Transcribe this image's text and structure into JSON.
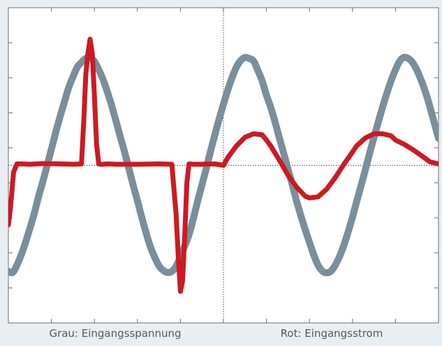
{
  "chart_data": {
    "type": "line",
    "title": "",
    "xlabel": "",
    "ylabel": "",
    "x_divisions": 10,
    "y_divisions": 9,
    "grid": false,
    "center_crosshair": true,
    "xlim": [
      0,
      10
    ],
    "ylim": [
      -4.5,
      4.5
    ],
    "series": [
      {
        "name": "Grau: Eingangsspannung",
        "color": "#7a8e9c",
        "x": [
          0.0,
          0.1,
          0.2,
          0.3,
          0.4,
          0.5,
          0.6,
          0.7,
          0.8,
          0.9,
          1.0,
          1.1,
          1.2,
          1.3,
          1.4,
          1.5,
          1.6,
          1.7,
          1.8,
          1.9,
          2.0,
          2.1,
          2.2,
          2.3,
          2.4,
          2.5,
          2.6,
          2.7,
          2.8,
          2.9,
          3.0,
          3.1,
          3.2,
          3.3,
          3.4,
          3.5,
          3.6,
          3.7,
          3.8,
          3.9,
          4.0,
          4.1,
          4.2,
          4.3,
          4.4,
          4.5,
          4.6,
          4.7,
          4.8,
          4.9,
          5.0,
          5.1,
          5.2,
          5.3,
          5.4,
          5.5,
          5.6,
          5.7,
          5.8,
          5.9,
          6.0,
          6.1,
          6.2,
          6.3,
          6.4,
          6.5,
          6.6,
          6.7,
          6.8,
          6.9,
          7.0,
          7.1,
          7.2,
          7.3,
          7.4,
          7.5,
          7.6,
          7.7,
          7.8,
          7.9,
          8.0,
          8.1,
          8.2,
          8.3,
          8.4,
          8.5,
          8.6,
          8.7,
          8.8,
          8.9,
          9.0,
          9.1,
          9.2,
          9.3,
          9.4,
          9.5,
          9.6,
          9.7,
          9.8,
          9.9,
          10.0
        ],
        "values": [
          -3.03,
          -3.06,
          -2.85,
          -2.55,
          -2.2,
          -1.8,
          -1.38,
          -0.9,
          -0.47,
          -0.01,
          0.46,
          0.94,
          1.38,
          1.8,
          2.21,
          2.52,
          2.8,
          2.94,
          3.05,
          3.06,
          2.97,
          2.73,
          2.45,
          2.1,
          1.71,
          1.27,
          0.82,
          0.39,
          -0.09,
          -0.56,
          -1.01,
          -1.48,
          -1.92,
          -2.32,
          -2.62,
          -2.87,
          -3.0,
          -3.06,
          -3.03,
          -2.88,
          -2.6,
          -2.3,
          -1.98,
          -1.52,
          -1.03,
          -0.56,
          -0.09,
          0.4,
          0.87,
          1.32,
          1.74,
          2.15,
          2.5,
          2.8,
          2.99,
          3.08,
          3.05,
          2.98,
          2.71,
          2.41,
          2.0,
          1.65,
          1.24,
          0.78,
          0.35,
          -0.11,
          -0.55,
          -1.02,
          -1.44,
          -1.83,
          -2.2,
          -2.56,
          -2.85,
          -3.02,
          -3.07,
          -3.02,
          -2.85,
          -2.6,
          -2.28,
          -1.9,
          -1.48,
          -1.02,
          -0.58,
          -0.12,
          0.35,
          0.8,
          1.24,
          1.66,
          2.06,
          2.42,
          2.73,
          2.98,
          3.08,
          3.05,
          2.93,
          2.71,
          2.42,
          2.08,
          1.67,
          1.22,
          0.77
        ]
      },
      {
        "name": "Rot: Eingangsstrom",
        "color": "#cc1a22",
        "x": [
          0.0,
          0.05,
          0.12,
          0.2,
          0.3,
          0.5,
          0.8,
          1.2,
          1.5,
          1.7,
          1.75,
          1.8,
          1.85,
          1.9,
          1.95,
          2.0,
          2.05,
          2.1,
          2.15,
          2.2,
          2.3,
          2.5,
          3.0,
          3.5,
          3.8,
          3.9,
          3.95,
          4.0,
          4.05,
          4.1,
          4.15,
          4.2,
          4.3,
          4.5,
          4.8,
          5.0,
          5.1,
          5.3,
          5.5,
          5.7,
          5.9,
          6.0,
          6.1,
          6.3,
          6.5,
          6.7,
          6.9,
          7.0,
          7.2,
          7.4,
          7.6,
          7.8,
          7.9,
          8.0,
          8.1,
          8.3,
          8.5,
          8.7,
          8.9,
          9.0,
          9.2,
          9.4,
          9.6,
          9.8,
          10.0
        ],
        "values": [
          -1.7,
          -1.2,
          -0.2,
          0.04,
          0.04,
          0.03,
          0.05,
          0.04,
          0.03,
          0.04,
          1.2,
          2.6,
          3.2,
          3.6,
          3.2,
          2.0,
          0.6,
          0.04,
          0.03,
          0.03,
          0.04,
          0.03,
          0.03,
          0.04,
          0.03,
          -1.4,
          -2.6,
          -3.6,
          -3.3,
          -2.0,
          -0.5,
          0.04,
          0.03,
          0.03,
          0.04,
          0.0,
          0.22,
          0.55,
          0.8,
          0.9,
          0.87,
          0.72,
          0.55,
          0.15,
          -0.28,
          -0.62,
          -0.88,
          -0.93,
          -0.9,
          -0.68,
          -0.35,
          0.03,
          0.2,
          0.38,
          0.56,
          0.78,
          0.9,
          0.9,
          0.84,
          0.72,
          0.6,
          0.45,
          0.28,
          0.1,
          0.04
        ]
      }
    ],
    "legend": [
      {
        "label": "Grau: Eingangsspannung",
        "placement": "bottom-left"
      },
      {
        "label": "Rot: Eingangsstrom",
        "placement": "bottom-right"
      }
    ]
  }
}
